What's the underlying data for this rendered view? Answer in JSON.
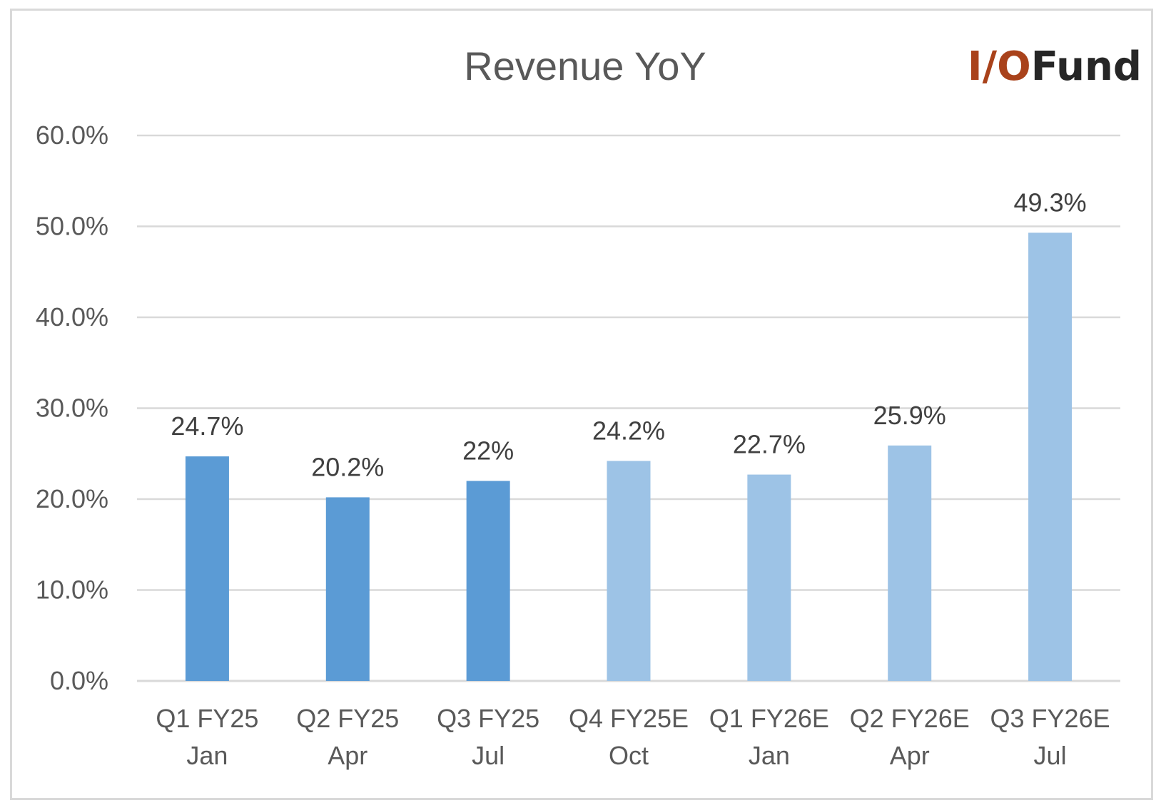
{
  "logo": {
    "brand_part": "I/O",
    "rest_part": "Fund",
    "brand_color": "#a9421b",
    "rest_color": "#262626"
  },
  "chart_data": {
    "type": "bar",
    "title": "Revenue YoY",
    "xlabel": "",
    "ylabel": "",
    "ylim": [
      0,
      60
    ],
    "yticks": [
      "0.0%",
      "10.0%",
      "20.0%",
      "30.0%",
      "40.0%",
      "50.0%",
      "60.0%"
    ],
    "grid": true,
    "legend": "none",
    "categories": [
      [
        "Q1 FY25",
        "Jan"
      ],
      [
        "Q2 FY25",
        "Apr"
      ],
      [
        "Q3 FY25",
        "Jul"
      ],
      [
        "Q4 FY25E",
        "Oct"
      ],
      [
        "Q1 FY26E",
        "Jan"
      ],
      [
        "Q2 FY26E",
        "Apr"
      ],
      [
        "Q3 FY26E",
        "Jul"
      ]
    ],
    "values": [
      24.7,
      20.2,
      22,
      24.2,
      22.7,
      25.9,
      49.3
    ],
    "data_labels": [
      "24.7%",
      "20.2%",
      "22%",
      "24.2%",
      "22.7%",
      "25.9%",
      "49.3%"
    ],
    "estimate": [
      false,
      false,
      false,
      true,
      true,
      true,
      true
    ],
    "colors": {
      "actual": "#5b9bd5",
      "estimate": "#9dc3e6",
      "grid": "#d9d9d9"
    }
  }
}
